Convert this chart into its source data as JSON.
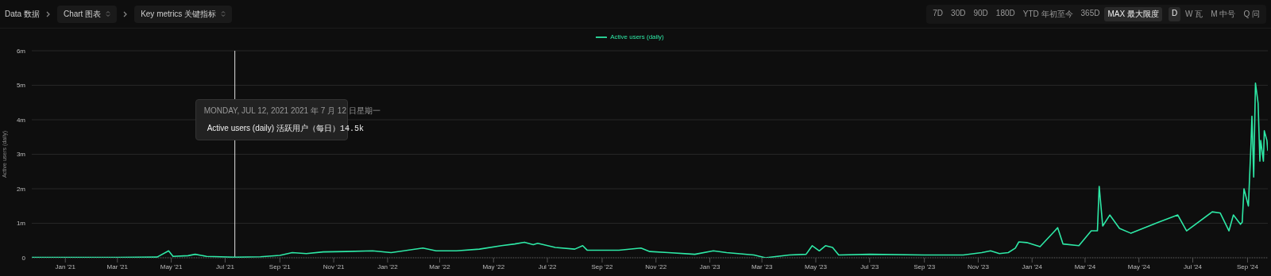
{
  "chart_data": {
    "type": "line",
    "ylabel": "Active users (daily)",
    "legend": "top",
    "grid": "y",
    "marker": "none",
    "line_style": "solid",
    "xlim": [
      "2020-11-24",
      "2024-09-24"
    ],
    "xticks": [
      {
        "value": "2021-01-01",
        "label": "Jan '21"
      },
      {
        "value": "2021-03-01",
        "label": "Mar '21"
      },
      {
        "value": "2021-05-01",
        "label": "May '21"
      },
      {
        "value": "2021-07-01",
        "label": "Jul '21"
      },
      {
        "value": "2021-09-01",
        "label": "Sep '21"
      },
      {
        "value": "2021-11-01",
        "label": "Nov '21"
      },
      {
        "value": "2022-01-01",
        "label": "Jan '22"
      },
      {
        "value": "2022-03-01",
        "label": "Mar '22"
      },
      {
        "value": "2022-05-01",
        "label": "May '22"
      },
      {
        "value": "2022-07-01",
        "label": "Jul '22"
      },
      {
        "value": "2022-09-01",
        "label": "Sep '22"
      },
      {
        "value": "2022-11-01",
        "label": "Nov '22"
      },
      {
        "value": "2023-01-01",
        "label": "Jan '23"
      },
      {
        "value": "2023-03-01",
        "label": "Mar '23"
      },
      {
        "value": "2023-05-01",
        "label": "May '23"
      },
      {
        "value": "2023-07-01",
        "label": "Jul '23"
      },
      {
        "value": "2023-09-01",
        "label": "Sep '23"
      },
      {
        "value": "2023-11-01",
        "label": "Nov '23"
      },
      {
        "value": "2024-01-01",
        "label": "Jan '24"
      },
      {
        "value": "2024-03-01",
        "label": "Mar '24"
      },
      {
        "value": "2024-05-01",
        "label": "May '24"
      },
      {
        "value": "2024-07-01",
        "label": "Jul '24"
      },
      {
        "value": "2024-09-01",
        "label": "Sep '24"
      }
    ],
    "ylim": [
      0,
      6
    ],
    "yticks": [
      0,
      {
        "value": 1,
        "label": "1m"
      },
      {
        "value": 2,
        "label": "2m"
      },
      {
        "value": 3,
        "label": "3m"
      },
      {
        "value": 4,
        "label": "4m"
      },
      {
        "value": 5,
        "label": "5m"
      },
      {
        "value": 6,
        "label": "6m"
      }
    ],
    "x": [
      "2020-11-24",
      "2021-01-01",
      "2021-03-01",
      "2021-04-15",
      "2021-04-28",
      "2021-05-03",
      "2021-05-20",
      "2021-05-28",
      "2021-06-10",
      "2021-07-12",
      "2021-08-10",
      "2021-09-01",
      "2021-09-15",
      "2021-10-01",
      "2021-10-20",
      "2021-11-15",
      "2021-12-15",
      "2022-01-05",
      "2022-02-10",
      "2022-02-25",
      "2022-03-20",
      "2022-04-15",
      "2022-05-10",
      "2022-05-25",
      "2022-06-05",
      "2022-06-15",
      "2022-06-20",
      "2022-07-10",
      "2022-08-01",
      "2022-08-10",
      "2022-08-15",
      "2022-09-20",
      "2022-10-15",
      "2022-10-25",
      "2022-11-15",
      "2022-12-15",
      "2023-01-05",
      "2023-01-20",
      "2023-02-20",
      "2023-03-05",
      "2023-04-01",
      "2023-04-20",
      "2023-04-27",
      "2023-05-05",
      "2023-05-12",
      "2023-05-20",
      "2023-05-27",
      "2023-07-01",
      "2023-09-01",
      "2023-10-15",
      "2023-11-05",
      "2023-11-15",
      "2023-11-25",
      "2023-12-05",
      "2023-12-13",
      "2023-12-17",
      "2023-12-26",
      "2024-01-10",
      "2024-01-26",
      "2024-01-30",
      "2024-02-05",
      "2024-02-23",
      "2024-03-08",
      "2024-03-15",
      "2024-03-17",
      "2024-03-21",
      "2024-03-29",
      "2024-04-09",
      "2024-04-22",
      "2024-05-23",
      "2024-06-14",
      "2024-06-24",
      "2024-07-23",
      "2024-08-01",
      "2024-08-11",
      "2024-08-16",
      "2024-08-24",
      "2024-08-26",
      "2024-08-28",
      "2024-09-02",
      "2024-09-05",
      "2024-09-06",
      "2024-09-08",
      "2024-09-10",
      "2024-09-13",
      "2024-09-15",
      "2024-09-16",
      "2024-09-19",
      "2024-09-20",
      "2024-09-23",
      "2024-09-24"
    ],
    "series": [
      {
        "name": "Active users (daily)",
        "color": "#2ee8a6",
        "values": [
          0.01,
          0.01,
          0.01,
          0.02,
          0.2,
          0.04,
          0.06,
          0.1,
          0.04,
          0.0145,
          0.03,
          0.07,
          0.15,
          0.12,
          0.17,
          0.18,
          0.2,
          0.15,
          0.28,
          0.2,
          0.2,
          0.25,
          0.35,
          0.4,
          0.45,
          0.38,
          0.42,
          0.3,
          0.25,
          0.35,
          0.22,
          0.22,
          0.28,
          0.18,
          0.15,
          0.1,
          0.2,
          0.15,
          0.08,
          0.0,
          0.08,
          0.1,
          0.35,
          0.2,
          0.35,
          0.3,
          0.08,
          0.1,
          0.08,
          0.08,
          0.15,
          0.2,
          0.12,
          0.15,
          0.28,
          0.46,
          0.44,
          0.32,
          0.76,
          0.87,
          0.4,
          0.35,
          0.78,
          0.78,
          2.07,
          0.92,
          1.24,
          0.85,
          0.71,
          1.03,
          1.24,
          0.78,
          1.33,
          1.3,
          0.78,
          1.24,
          0.97,
          1.03,
          2.0,
          1.5,
          3.33,
          4.1,
          2.34,
          5.06,
          4.48,
          2.8,
          3.4,
          2.8,
          3.68,
          3.4,
          3.1
        ]
      }
    ],
    "ref_lines": [
      {
        "axis": "x",
        "value": "2021-07-12",
        "color": "#e0e0e0"
      }
    ],
    "annotations": [
      "Data 数据",
      "Chart 图表",
      "Key metrics 关键指标",
      "7D",
      "30D",
      "90D",
      "180D",
      "YTD 年初至今",
      "365D",
      "MAX 最大限度",
      "D",
      "W 瓦",
      "M 中号",
      "Q 问",
      "MONDAY, JUL 12, 2021 2021 年 7 月 12 日星期一",
      "Active users (daily) 活跃用户（每日）",
      "14.5k"
    ]
  }
}
